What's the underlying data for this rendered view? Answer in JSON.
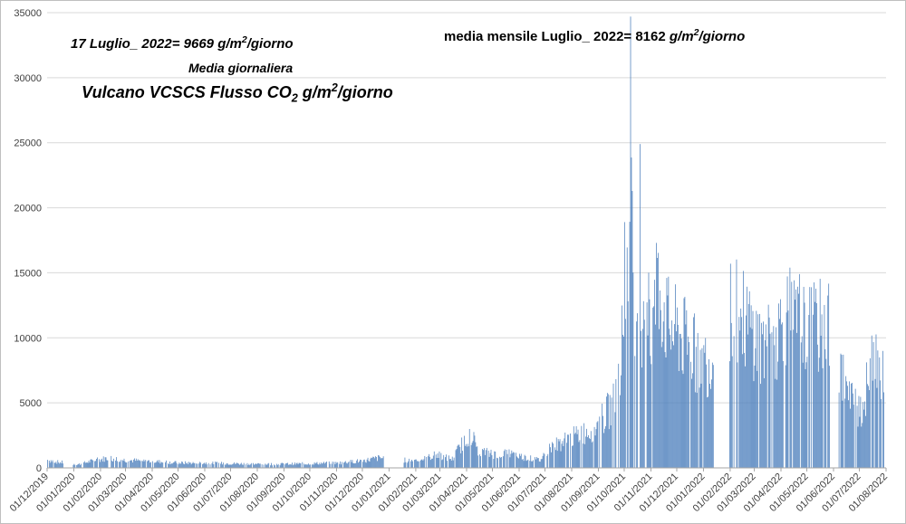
{
  "annotations": {
    "daily_label_prefix": "17 Luglio_ 2022= 9669",
    "monthly_label_prefix": "media mensile Luglio_ 2022= 8162",
    "unit_g": "g/m",
    "unit_exp": "2",
    "unit_suffix": "/giorno",
    "media_giornaliera": "Media giornaliera",
    "title_prefix": "Vulcano VCSCS Flusso CO",
    "title_sub": "2",
    "title_unit_g": " g/m",
    "title_unit_exp": "2",
    "title_unit_suffix": "/giorno"
  },
  "colors": {
    "bar": "#4f81bd",
    "grid": "#d9d9d9",
    "axis": "#a6a6a6"
  },
  "chart_data": {
    "type": "bar",
    "ylim": [
      0,
      35000
    ],
    "yticks": [
      0,
      5000,
      10000,
      15000,
      20000,
      25000,
      30000,
      35000
    ],
    "xlim": [
      "2019-12-01",
      "2022-08-01"
    ],
    "xticks": [
      "01/12/2019",
      "01/01/2020",
      "01/02/2020",
      "01/03/2020",
      "01/04/2020",
      "01/05/2020",
      "01/06/2020",
      "01/07/2020",
      "01/08/2020",
      "01/09/2020",
      "01/10/2020",
      "01/11/2020",
      "01/12/2020",
      "01/01/2021",
      "01/02/2021",
      "01/03/2021",
      "01/04/2021",
      "01/05/2021",
      "01/06/2021",
      "01/07/2021",
      "01/08/2021",
      "01/09/2021",
      "01/10/2021",
      "01/11/2021",
      "01/12/2021",
      "01/01/2022",
      "01/02/2022",
      "01/03/2022",
      "01/04/2022",
      "01/05/2022",
      "01/06/2022",
      "01/07/2022",
      "01/08/2022"
    ],
    "grid": true,
    "legend": "none",
    "daily_profile": [
      [
        "2019-12-02",
        700
      ],
      [
        "2019-12-15",
        500
      ],
      [
        "2019-12-25",
        0
      ],
      [
        "2020-01-05",
        300
      ],
      [
        "2020-01-20",
        600
      ],
      [
        "2020-02-10",
        900
      ],
      [
        "2020-03-01",
        700
      ],
      [
        "2020-04-01",
        600
      ],
      [
        "2020-05-01",
        450
      ],
      [
        "2020-06-01",
        450
      ],
      [
        "2020-07-01",
        400
      ],
      [
        "2020-08-01",
        350
      ],
      [
        "2020-09-01",
        350
      ],
      [
        "2020-10-01",
        400
      ],
      [
        "2020-11-01",
        450
      ],
      [
        "2020-12-01",
        650
      ],
      [
        "2020-12-20",
        900
      ],
      [
        "2020-12-31",
        0
      ],
      [
        "2021-01-10",
        0
      ],
      [
        "2021-01-25",
        700
      ],
      [
        "2021-02-10",
        800
      ],
      [
        "2021-02-25",
        1200
      ],
      [
        "2021-03-15",
        800
      ],
      [
        "2021-03-25",
        2000
      ],
      [
        "2021-04-05",
        3200
      ],
      [
        "2021-04-15",
        1500
      ],
      [
        "2021-05-05",
        1200
      ],
      [
        "2021-05-20",
        1300
      ],
      [
        "2021-06-10",
        900
      ],
      [
        "2021-06-25",
        700
      ],
      [
        "2021-07-05",
        1800
      ],
      [
        "2021-07-25",
        2500
      ],
      [
        "2021-08-15",
        3200
      ],
      [
        "2021-08-31",
        3800
      ],
      [
        "2021-09-15",
        5500
      ],
      [
        "2021-09-25",
        7500
      ],
      [
        "2021-10-01",
        15000
      ],
      [
        "2021-10-10",
        22000
      ],
      [
        "2021-10-15",
        11000
      ],
      [
        "2021-10-25",
        16000
      ],
      [
        "2021-11-01",
        12000
      ],
      [
        "2021-11-10",
        16500
      ],
      [
        "2021-11-20",
        13000
      ],
      [
        "2021-12-10",
        11500
      ],
      [
        "2021-12-25",
        10000
      ],
      [
        "2022-01-10",
        9500
      ],
      [
        "2022-01-15",
        0
      ],
      [
        "2022-01-30",
        0
      ],
      [
        "2022-02-01",
        14800
      ],
      [
        "2022-02-20",
        13000
      ],
      [
        "2022-03-10",
        11000
      ],
      [
        "2022-03-25",
        11500
      ],
      [
        "2022-04-05",
        14000
      ],
      [
        "2022-04-20",
        12500
      ],
      [
        "2022-05-10",
        12500
      ],
      [
        "2022-05-25",
        13000
      ],
      [
        "2022-05-31",
        0
      ],
      [
        "2022-06-05",
        0
      ],
      [
        "2022-06-08",
        8800
      ],
      [
        "2022-06-20",
        6000
      ],
      [
        "2022-07-05",
        5500
      ],
      [
        "2022-07-15",
        9500
      ],
      [
        "2022-07-22",
        11000
      ],
      [
        "2022-07-28",
        8000
      ],
      [
        "2022-07-31",
        0
      ]
    ],
    "spikes": [
      [
        "2021-10-01",
        18900
      ],
      [
        "2021-10-03",
        19200
      ],
      [
        "2021-10-06",
        23000
      ],
      [
        "2021-10-08",
        34700
      ],
      [
        "2021-10-12",
        21300
      ],
      [
        "2021-10-14",
        18700
      ],
      [
        "2021-10-19",
        24900
      ],
      [
        "2021-11-07",
        17300
      ],
      [
        "2022-02-01",
        15700
      ],
      [
        "2022-04-22",
        14900
      ],
      [
        "2022-05-28",
        14400
      ],
      [
        "2022-07-17",
        9669
      ]
    ]
  }
}
